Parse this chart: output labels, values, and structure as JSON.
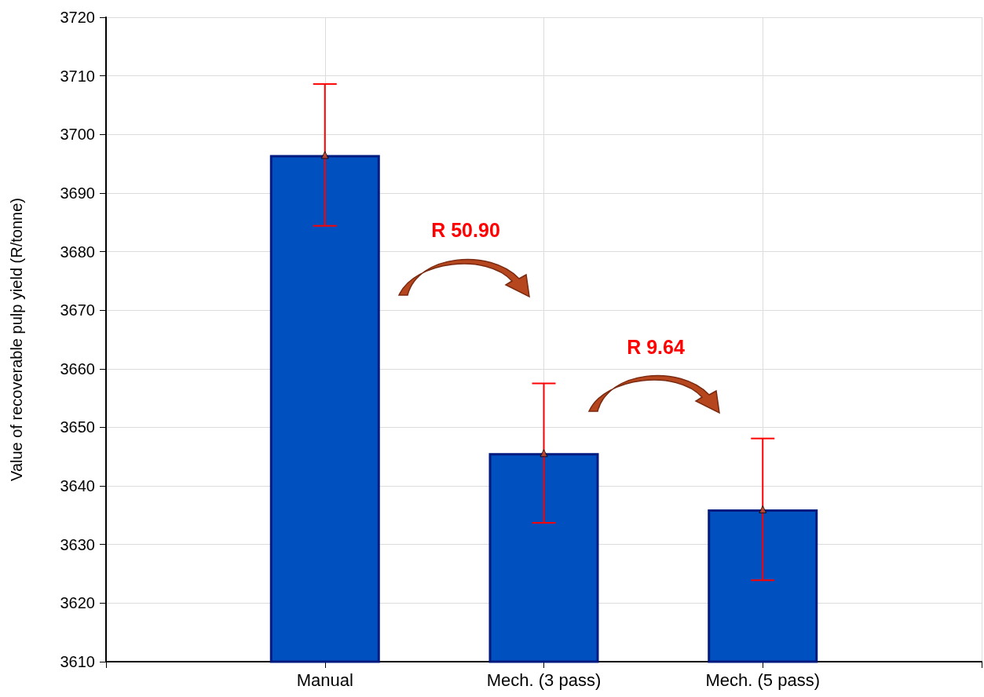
{
  "chart_data": {
    "type": "bar",
    "ylabel": "Value of recoverable pulp yield (R/tonne)",
    "categories": [
      null,
      "Manual",
      "Mech. (3 pass)",
      "Mech. (5 pass)",
      null
    ],
    "series": [
      {
        "color": "#0050bf",
        "values": [
          null,
          3696.5,
          3645.6,
          3636.0,
          null
        ],
        "errors": [
          null,
          12.1,
          11.9,
          12.1,
          null
        ]
      },
      {
        "type": "scatter",
        "color": "#c05030",
        "x": [
          "Manual",
          "Mech. (3 pass)",
          "Mech. (5 pass)"
        ],
        "values": [
          3696.5,
          3645.6,
          3636.0
        ]
      }
    ],
    "ylim": [
      3610,
      3720
    ],
    "yticks": [
      3610,
      3620,
      3630,
      3640,
      3650,
      3660,
      3670,
      3680,
      3690,
      3700,
      3710,
      3720
    ],
    "grid": true,
    "marker": "triangle",
    "annotations": [
      "R 50.90",
      "R 9.64"
    ]
  }
}
